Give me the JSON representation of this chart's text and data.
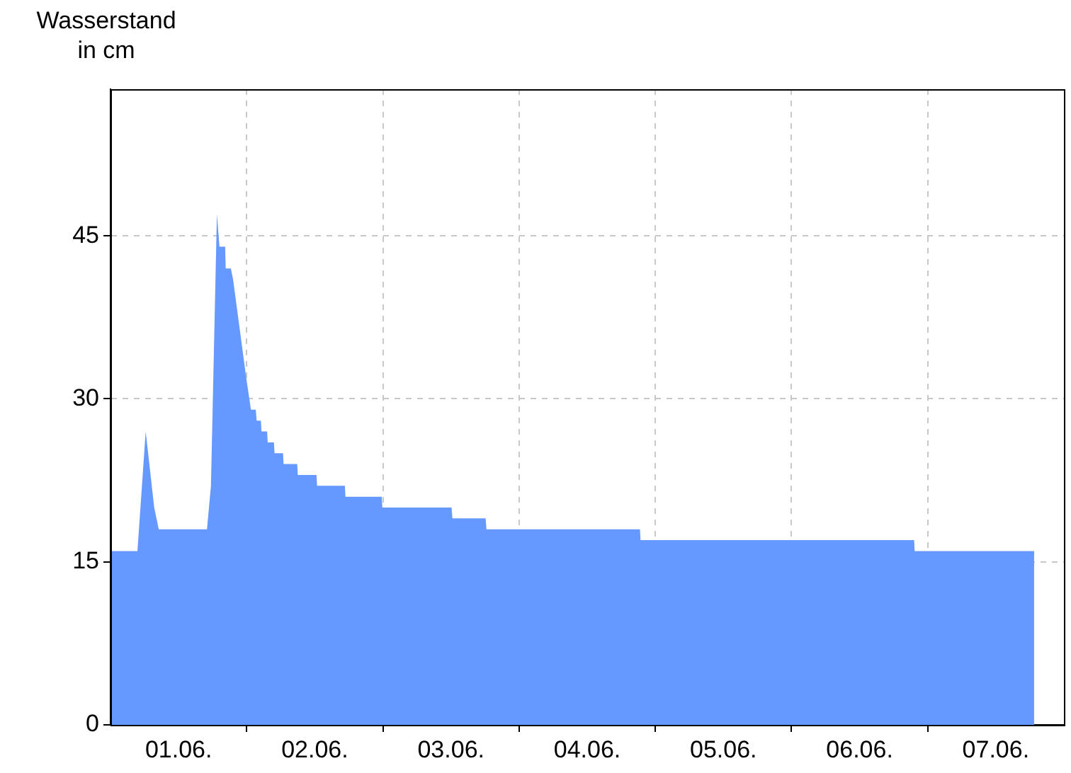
{
  "chart_data": {
    "type": "area",
    "ylabel": "Wasserstand\nin cm",
    "x": [
      "--06-01T00:00",
      "--06-01T04:45",
      "--06-01T06:12",
      "--06-01T07:42",
      "--06-01T08:30",
      "--06-01T17:00",
      "--06-01T17:42",
      "--06-01T18:45",
      "--06-01T19:12",
      "--06-01T20:12",
      "--06-01T20:18",
      "--06-01T21:12",
      "--06-01T21:36",
      "--06-01T23:54",
      "--06-02T00:45",
      "--06-02T01:36",
      "--06-02T01:45",
      "--06-02T02:30",
      "--06-02T02:36",
      "--06-02T03:36",
      "--06-02T03:42",
      "--06-02T04:48",
      "--06-02T04:54",
      "--06-02T06:24",
      "--06-02T06:30",
      "--06-02T08:54",
      "--06-02T09:00",
      "--06-02T12:18",
      "--06-02T12:24",
      "--06-02T17:18",
      "--06-02T17:24",
      "--06-02T23:48",
      "--06-02T23:54",
      "--06-03T12:06",
      "--06-03T12:15",
      "--06-03T18:06",
      "--06-03T18:15",
      "--06-04T21:18",
      "--06-04T21:24",
      "--06-06T21:36",
      "--06-06T21:42",
      "--06-07T18:45"
    ],
    "series": [
      {
        "color": "#6699ff",
        "values": [
          16,
          16,
          27,
          20,
          18,
          18,
          22,
          47,
          44,
          44,
          42,
          42,
          41,
          32,
          29,
          29,
          28,
          28,
          27,
          27,
          26,
          26,
          25,
          25,
          24,
          24,
          23,
          23,
          22,
          22,
          21,
          21,
          20,
          20,
          19,
          19,
          18,
          18,
          17,
          17,
          16,
          16
        ]
      }
    ],
    "xlim": [
      "--06-01",
      "--06-08"
    ],
    "xticks": [
      {
        "value": "--06-01T12:00",
        "label": "01.06."
      },
      {
        "value": "--06-02",
        "label": null
      },
      {
        "value": "--06-02T12:00",
        "label": "02.06."
      },
      {
        "value": "--06-03",
        "label": null
      },
      {
        "value": "--06-03T12:00",
        "label": "03.06."
      },
      {
        "value": "--06-04",
        "label": null
      },
      {
        "value": "--06-04T12:00",
        "label": "04.06."
      },
      {
        "value": "--06-05",
        "label": null
      },
      {
        "value": "--06-05T12:00",
        "label": "05.06."
      },
      {
        "value": "--06-06",
        "label": null
      },
      {
        "value": "--06-06T12:00",
        "label": "06.06."
      },
      {
        "value": "--06-07",
        "label": null
      },
      {
        "value": "--06-07T12:00",
        "label": "07.06."
      }
    ],
    "ylim": [
      0,
      58.5
    ],
    "yticks": [
      0,
      15,
      30,
      45
    ],
    "grid": true,
    "legend": false
  }
}
